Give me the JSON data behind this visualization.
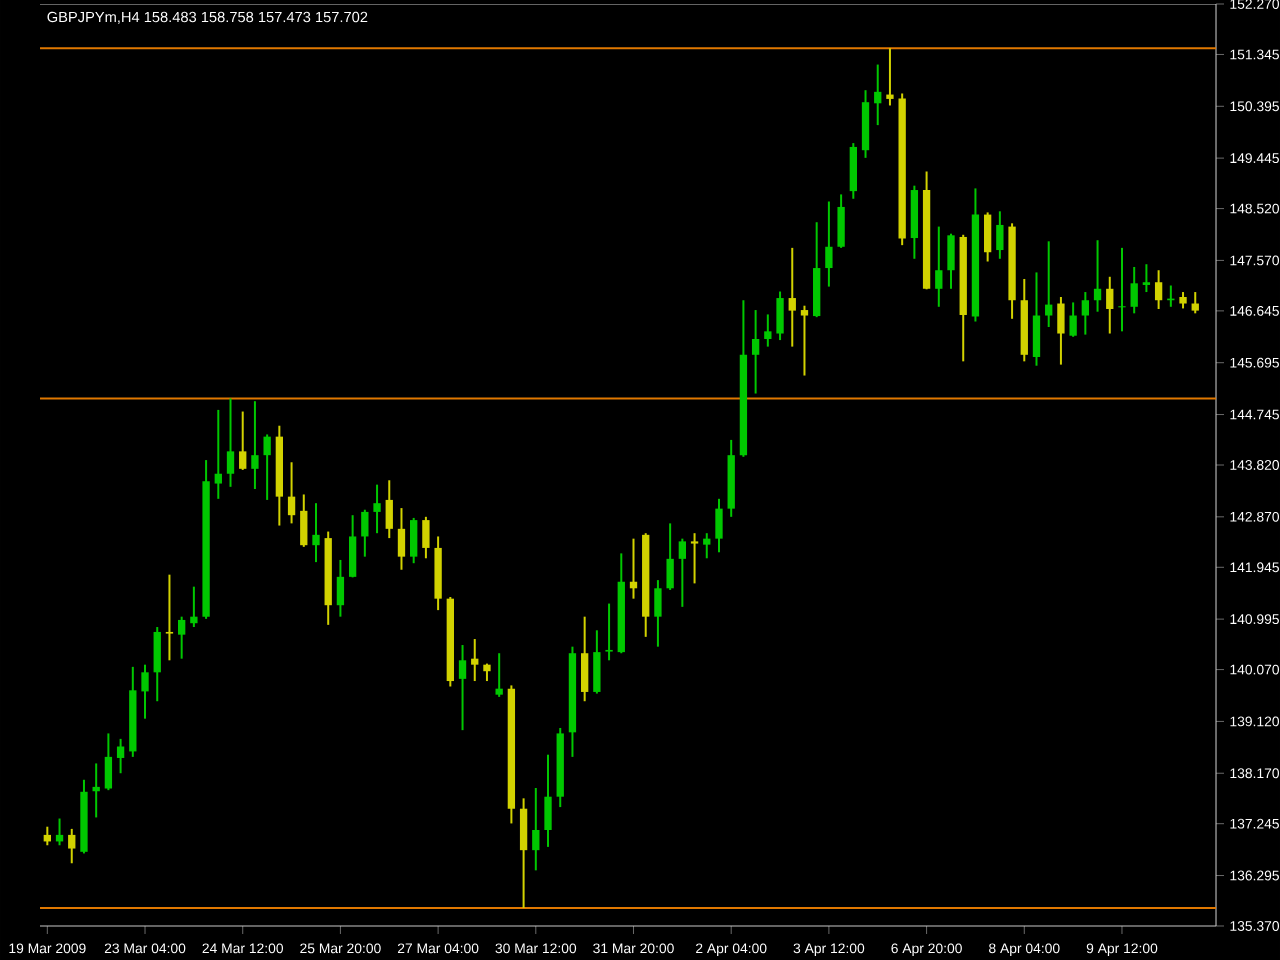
{
  "chart_data": {
    "type": "candlestick",
    "title": "GBPJPYm,H4  158.483 158.758 157.473 157.702",
    "categories": [
      "19 Mar 2009",
      null,
      null,
      null,
      null,
      null,
      null,
      null,
      "23 Mar 04:00",
      null,
      null,
      null,
      null,
      null,
      null,
      null,
      "24 Mar 12:00",
      null,
      null,
      null,
      null,
      null,
      null,
      null,
      "25 Mar 20:00",
      null,
      null,
      null,
      null,
      null,
      null,
      null,
      "27 Mar 04:00",
      null,
      null,
      null,
      null,
      null,
      null,
      null,
      "30 Mar 12:00",
      null,
      null,
      null,
      null,
      null,
      null,
      null,
      "31 Mar 20:00",
      null,
      null,
      null,
      null,
      null,
      null,
      null,
      "2 Apr 04:00",
      null,
      null,
      null,
      null,
      null,
      null,
      null,
      "3 Apr 12:00",
      null,
      null,
      null,
      null,
      null,
      null,
      null,
      "6 Apr 20:00",
      null,
      null,
      null,
      null,
      null,
      null,
      null,
      "8 Apr 04:00",
      null,
      null,
      null,
      null,
      null,
      null,
      null,
      "9 Apr 12:00",
      null,
      null,
      null,
      null,
      null,
      null
    ],
    "ohlc": [
      [
        137.04,
        137.19,
        136.85,
        136.92
      ],
      [
        136.92,
        137.34,
        136.85,
        137.04
      ],
      [
        137.04,
        137.15,
        136.52,
        136.79
      ],
      [
        136.73,
        138.05,
        136.7,
        137.83
      ],
      [
        137.84,
        138.35,
        137.36,
        137.92
      ],
      [
        137.89,
        138.9,
        137.86,
        138.47
      ],
      [
        138.45,
        138.8,
        138.17,
        138.66
      ],
      [
        138.57,
        140.12,
        138.47,
        139.69
      ],
      [
        139.67,
        140.16,
        139.17,
        140.02
      ],
      [
        140.02,
        140.85,
        139.49,
        140.76
      ],
      [
        140.76,
        141.81,
        140.24,
        140.73
      ],
      [
        140.71,
        141.04,
        140.27,
        140.98
      ],
      [
        140.92,
        141.59,
        140.85,
        141.04
      ],
      [
        141.04,
        143.91,
        141.0,
        143.52
      ],
      [
        143.48,
        144.83,
        143.2,
        143.66
      ],
      [
        143.66,
        145.04,
        143.42,
        144.07
      ],
      [
        144.07,
        144.8,
        143.73,
        143.75
      ],
      [
        143.75,
        144.99,
        143.38,
        144.0
      ],
      [
        144.0,
        144.38,
        143.18,
        144.34
      ],
      [
        144.34,
        144.54,
        142.71,
        143.24
      ],
      [
        143.24,
        143.87,
        142.75,
        142.9
      ],
      [
        142.98,
        143.28,
        142.32,
        142.35
      ],
      [
        142.35,
        143.12,
        142.04,
        142.54
      ],
      [
        142.48,
        142.6,
        140.89,
        141.25
      ],
      [
        141.25,
        142.08,
        141.04,
        141.77
      ],
      [
        141.77,
        142.9,
        141.76,
        142.51
      ],
      [
        142.51,
        143.0,
        142.14,
        142.96
      ],
      [
        142.96,
        143.46,
        142.57,
        143.12
      ],
      [
        143.18,
        143.54,
        142.48,
        142.65
      ],
      [
        142.65,
        143.03,
        141.9,
        142.14
      ],
      [
        142.14,
        142.85,
        142.02,
        142.81
      ],
      [
        142.81,
        142.87,
        142.11,
        142.3
      ],
      [
        142.3,
        142.51,
        141.16,
        141.37
      ],
      [
        141.37,
        141.4,
        139.76,
        139.86
      ],
      [
        139.9,
        140.52,
        138.96,
        140.24
      ],
      [
        140.27,
        140.63,
        139.86,
        140.16
      ],
      [
        140.16,
        140.18,
        139.86,
        140.04
      ],
      [
        139.61,
        140.37,
        139.57,
        139.72
      ],
      [
        139.72,
        139.78,
        137.25,
        137.52
      ],
      [
        137.52,
        137.71,
        135.7,
        136.76
      ],
      [
        136.76,
        137.9,
        136.39,
        137.13
      ],
      [
        137.13,
        138.51,
        136.82,
        137.74
      ],
      [
        137.74,
        139.0,
        137.55,
        138.9
      ],
      [
        138.92,
        140.49,
        138.47,
        140.37
      ],
      [
        140.37,
        141.04,
        139.49,
        139.66
      ],
      [
        139.66,
        140.79,
        139.63,
        140.39
      ],
      [
        140.4,
        141.28,
        140.24,
        140.43
      ],
      [
        140.39,
        142.2,
        140.37,
        141.68
      ],
      [
        141.68,
        142.47,
        141.37,
        141.56
      ],
      [
        142.54,
        142.57,
        140.67,
        141.04
      ],
      [
        141.04,
        141.71,
        140.49,
        141.56
      ],
      [
        141.56,
        142.75,
        141.53,
        142.1
      ],
      [
        142.1,
        142.47,
        141.22,
        142.42
      ],
      [
        142.42,
        142.57,
        141.65,
        142.38
      ],
      [
        142.36,
        142.57,
        142.11,
        142.47
      ],
      [
        142.47,
        143.2,
        142.22,
        143.02
      ],
      [
        143.02,
        144.28,
        142.87,
        144.0
      ],
      [
        144.0,
        146.84,
        143.97,
        145.84
      ],
      [
        145.84,
        146.66,
        145.13,
        146.13
      ],
      [
        146.13,
        146.58,
        145.99,
        146.27
      ],
      [
        146.23,
        147.0,
        146.11,
        146.88
      ],
      [
        146.88,
        147.8,
        145.99,
        146.65
      ],
      [
        146.66,
        146.74,
        145.46,
        146.56
      ],
      [
        146.55,
        148.27,
        146.53,
        147.43
      ],
      [
        147.43,
        148.65,
        147.09,
        147.82
      ],
      [
        147.82,
        148.78,
        147.8,
        148.55
      ],
      [
        148.84,
        149.72,
        148.7,
        149.65
      ],
      [
        149.59,
        150.69,
        149.45,
        150.47
      ],
      [
        150.45,
        151.16,
        150.05,
        150.66
      ],
      [
        150.61,
        151.46,
        150.41,
        150.53
      ],
      [
        150.54,
        150.63,
        147.85,
        147.97
      ],
      [
        147.98,
        148.94,
        147.6,
        148.86
      ],
      [
        148.86,
        149.2,
        147.04,
        147.05
      ],
      [
        147.05,
        148.19,
        146.72,
        147.39
      ],
      [
        147.39,
        148.06,
        147.05,
        148.03
      ],
      [
        148.0,
        148.04,
        145.72,
        146.57
      ],
      [
        146.54,
        148.89,
        146.45,
        148.41
      ],
      [
        148.41,
        148.45,
        147.55,
        147.72
      ],
      [
        147.76,
        148.47,
        147.6,
        148.22
      ],
      [
        148.19,
        148.25,
        146.5,
        146.84
      ],
      [
        146.84,
        147.23,
        145.72,
        145.84
      ],
      [
        145.8,
        147.35,
        145.64,
        146.56
      ],
      [
        146.56,
        147.92,
        146.35,
        146.76
      ],
      [
        146.78,
        146.9,
        145.66,
        146.23
      ],
      [
        146.19,
        146.8,
        146.17,
        146.56
      ],
      [
        146.56,
        146.99,
        146.21,
        146.84
      ],
      [
        146.84,
        147.94,
        146.63,
        147.05
      ],
      [
        147.05,
        147.27,
        146.23,
        146.68
      ],
      [
        146.71,
        147.8,
        146.27,
        146.73
      ],
      [
        146.72,
        147.45,
        146.6,
        147.15
      ],
      [
        147.12,
        147.5,
        146.99,
        147.17
      ],
      [
        147.17,
        147.39,
        146.68,
        146.84
      ],
      [
        146.84,
        147.11,
        146.72,
        146.87
      ],
      [
        146.9,
        146.99,
        146.69,
        146.78
      ],
      [
        146.78,
        146.99,
        146.6,
        146.65
      ]
    ],
    "colors": [
      "#d2d200",
      "#00c800",
      "#d2d200",
      "#00c800",
      "#00c800",
      "#00c800",
      "#00c800",
      "#00c800",
      "#00c800",
      "#00c800",
      "#d2d200",
      "#00c800",
      "#00c800",
      "#00c800",
      "#00c800",
      "#00c800",
      "#d2d200",
      "#00c800",
      "#00c800",
      "#d2d200",
      "#d2d200",
      "#d2d200",
      "#00c800",
      "#d2d200",
      "#00c800",
      "#00c800",
      "#00c800",
      "#00c800",
      "#d2d200",
      "#d2d200",
      "#00c800",
      "#d2d200",
      "#d2d200",
      "#d2d200",
      "#00c800",
      "#d2d200",
      "#d2d200",
      "#00c800",
      "#d2d200",
      "#d2d200",
      "#00c800",
      "#00c800",
      "#00c800",
      "#00c800",
      "#d2d200",
      "#00c800",
      "#00c800",
      "#00c800",
      "#d2d200",
      "#d2d200",
      "#00c800",
      "#00c800",
      "#00c800",
      "#d2d200",
      "#00c800",
      "#00c800",
      "#00c800",
      "#00c800",
      "#00c800",
      "#00c800",
      "#00c800",
      "#d2d200",
      "#d2d200",
      "#00c800",
      "#00c800",
      "#00c800",
      "#00c800",
      "#00c800",
      "#00c800",
      "#d2d200",
      "#d2d200",
      "#00c800",
      "#d2d200",
      "#00c800",
      "#00c800",
      "#d2d200",
      "#00c800",
      "#d2d200",
      "#00c800",
      "#d2d200",
      "#d2d200",
      "#00c800",
      "#00c800",
      "#d2d200",
      "#00c800",
      "#00c800",
      "#00c800",
      "#d2d200",
      "#00c800",
      "#00c800",
      "#00c800",
      "#d2d200",
      "#00c800",
      "#d2d200",
      "#d2d200"
    ],
    "ylim": [
      135.37,
      152.27
    ],
    "yticks": [
      {
        "value": 135.37,
        "label": "135.370"
      },
      {
        "value": 136.295,
        "label": "136.295"
      },
      {
        "value": 137.245,
        "label": "137.245"
      },
      {
        "value": 138.17,
        "label": "138.170"
      },
      {
        "value": 139.12,
        "label": "139.120"
      },
      {
        "value": 140.07,
        "label": "140.070"
      },
      {
        "value": 140.995,
        "label": "140.995"
      },
      {
        "value": 141.945,
        "label": "141.945"
      },
      {
        "value": 142.87,
        "label": "142.870"
      },
      {
        "value": 143.82,
        "label": "143.820"
      },
      {
        "value": 144.745,
        "label": "144.745"
      },
      {
        "value": 145.695,
        "label": "145.695"
      },
      {
        "value": 146.645,
        "label": "146.645"
      },
      {
        "value": 147.57,
        "label": "147.570"
      },
      {
        "value": 148.52,
        "label": "148.520"
      },
      {
        "value": 149.445,
        "label": "149.445"
      },
      {
        "value": 150.395,
        "label": "150.395"
      },
      {
        "value": 151.345,
        "label": "151.345"
      },
      {
        "value": 152.27,
        "label": "152.270"
      }
    ],
    "ref_lines": [
      {
        "axis": "y",
        "value": 145.04,
        "color": "#e07800",
        "line_style": "solid"
      },
      {
        "axis": "y",
        "value": 135.7,
        "color": "#e07800",
        "line_style": "solid"
      },
      {
        "axis": "y",
        "value": 151.46,
        "color": "#e07800",
        "line_style": "solid"
      }
    ]
  }
}
